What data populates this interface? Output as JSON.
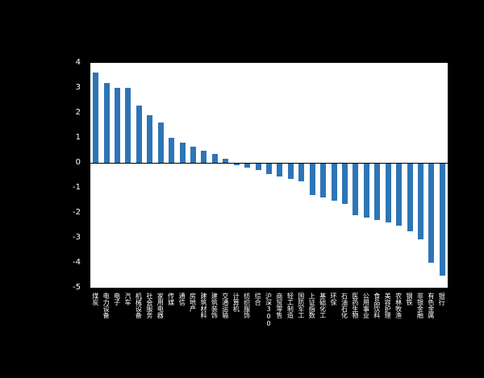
{
  "chart_data": {
    "type": "bar",
    "title": "",
    "xlabel": "",
    "ylabel": "",
    "categories": [
      "煤炭",
      "电力设备",
      "电子",
      "汽车",
      "机械设备",
      "社会服务",
      "家用电器",
      "传媒",
      "通信",
      "房地产",
      "建筑材料",
      "建筑装饰",
      "交通运输",
      "计算机",
      "纺织服饰",
      "综合",
      "沪深300",
      "商贸零售",
      "轻工制造",
      "国防军工",
      "上证指数",
      "基础化工",
      "环保",
      "石油石化",
      "医药生物",
      "公用事业",
      "食品饮料",
      "美容护理",
      "农林牧渔",
      "钢铁",
      "非银金融",
      "有色金属",
      "银行"
    ],
    "values": [
      3.6,
      3.2,
      3.0,
      3.0,
      2.3,
      1.9,
      1.6,
      1.0,
      0.8,
      0.65,
      0.5,
      0.35,
      0.15,
      -0.1,
      -0.2,
      -0.3,
      -0.45,
      -0.55,
      -0.65,
      -0.75,
      -1.3,
      -1.4,
      -1.5,
      -1.65,
      -2.1,
      -2.2,
      -2.3,
      -2.4,
      -2.5,
      -2.75,
      -3.05,
      -4.0,
      -4.5
    ],
    "ylim": [
      -5,
      4
    ],
    "yticks": [
      4,
      3,
      2,
      1,
      0,
      -1,
      -2,
      -3,
      -4,
      -5
    ],
    "grid": false,
    "legend": null,
    "bar_color": "#2E75B6",
    "plot_background": "#FFFFFF",
    "page_background": "#000000",
    "axis_text_color": "#FFFFFF"
  }
}
